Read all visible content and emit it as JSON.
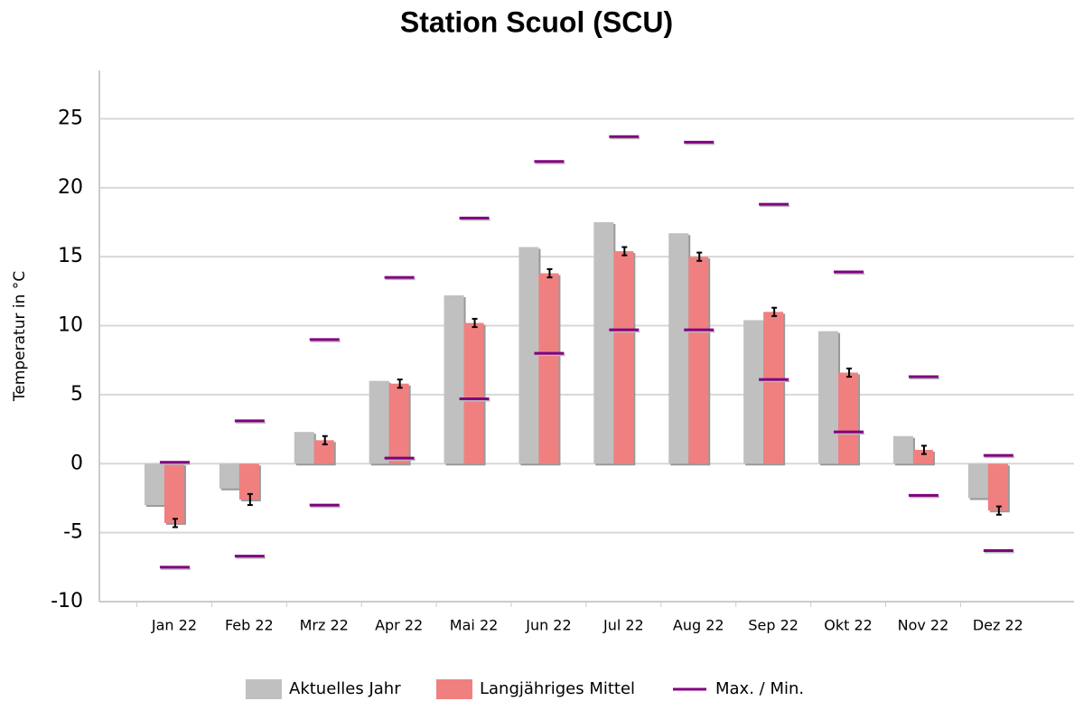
{
  "chart_data": {
    "type": "bar",
    "title": "Station Scuol (SCU)",
    "y_label": "Temperatur in °C",
    "categories": [
      "Jan 22",
      "Feb 22",
      "Mrz 22",
      "Apr 22",
      "Mai 22",
      "Jun 22",
      "Jul 22",
      "Aug 22",
      "Sep 22",
      "Okt 22",
      "Nov 22",
      "Dez 22"
    ],
    "series": [
      {
        "name": "Aktuelles Jahr",
        "color": "#c0c0c0",
        "values": [
          -3.0,
          -1.8,
          2.3,
          6.0,
          12.2,
          15.7,
          17.5,
          16.7,
          10.4,
          9.6,
          2.0,
          -2.5
        ]
      },
      {
        "name": "Langjähriges Mittel",
        "color": "#f08080",
        "values": [
          -4.3,
          -2.6,
          1.7,
          5.8,
          10.2,
          13.8,
          15.4,
          15.0,
          11.0,
          6.6,
          1.0,
          -3.4
        ],
        "errors": [
          0.3,
          0.4,
          0.3,
          0.3,
          0.3,
          0.3,
          0.3,
          0.3,
          0.3,
          0.3,
          0.3,
          0.3
        ]
      },
      {
        "name": "Max. / Min.",
        "color": "#800080",
        "values": [
          0.1,
          3.1,
          9.0,
          13.5,
          17.8,
          21.9,
          23.7,
          23.3,
          18.8,
          13.9,
          6.3,
          0.6
        ],
        "min": [
          -7.5,
          -6.7,
          -3.0,
          0.4,
          4.7,
          8.0,
          9.7,
          9.7,
          6.1,
          2.3,
          -2.3,
          -6.3
        ]
      }
    ],
    "ylim": [
      -10,
      28.5
    ],
    "yticks": [
      -10,
      -5,
      0,
      5,
      10,
      15,
      20,
      25
    ],
    "grid": true
  }
}
